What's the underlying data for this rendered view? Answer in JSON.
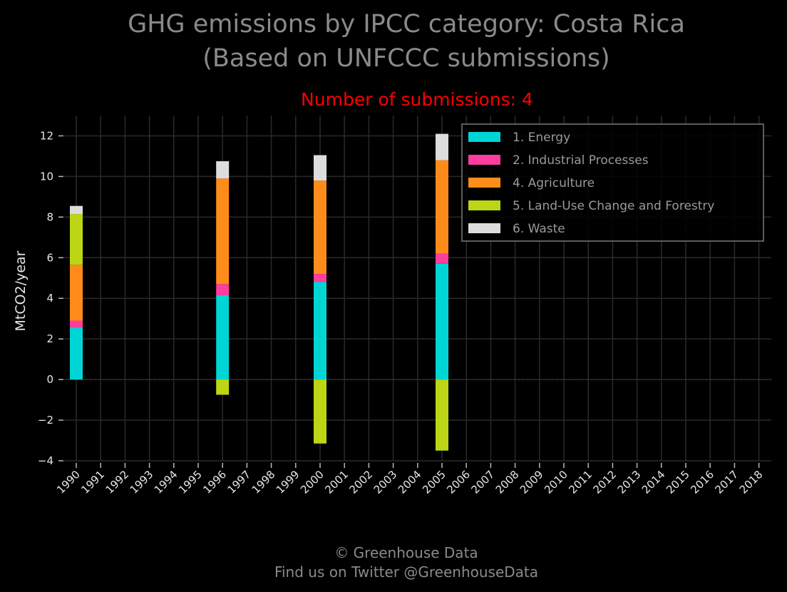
{
  "page": {
    "title_line1": "GHG emissions by IPCC category: Costa Rica",
    "title_line2": "(Based on UNFCCC submissions)",
    "footer_line1": "© Greenhouse Data",
    "footer_line2": "Find us on Twitter @GreenhouseData"
  },
  "chart_data": {
    "type": "bar",
    "stacked": true,
    "title": "GHG emissions by IPCC category: Costa Rica (Based on UNFCCC submissions)",
    "subtitle": "Number of submissions: 4",
    "xlabel": "",
    "ylabel": "MtCO2/year",
    "ylim": [
      -4,
      13
    ],
    "yticks": [
      -4,
      -2,
      0,
      2,
      4,
      6,
      8,
      10,
      12
    ],
    "ytick_labels": [
      "−4",
      "−2",
      "0",
      "2",
      "4",
      "6",
      "8",
      "10",
      "12"
    ],
    "grid": true,
    "legend_position": "top-right",
    "categories": [
      "1990",
      "1991",
      "1992",
      "1993",
      "1994",
      "1995",
      "1996",
      "1997",
      "1998",
      "1999",
      "2000",
      "2001",
      "2002",
      "2003",
      "2004",
      "2005",
      "2006",
      "2007",
      "2008",
      "2009",
      "2010",
      "2011",
      "2012",
      "2013",
      "2014",
      "2015",
      "2016",
      "2017",
      "2018"
    ],
    "series": [
      {
        "name": "1. Energy",
        "color": "#00d5d5",
        "values": [
          2.55,
          null,
          null,
          null,
          null,
          null,
          4.15,
          null,
          null,
          null,
          4.8,
          null,
          null,
          null,
          null,
          5.7,
          null,
          null,
          null,
          null,
          null,
          null,
          null,
          null,
          null,
          null,
          null,
          null,
          null
        ]
      },
      {
        "name": "2. Industrial Processes",
        "color": "#ff3d9e",
        "values": [
          0.35,
          null,
          null,
          null,
          null,
          null,
          0.55,
          null,
          null,
          null,
          0.4,
          null,
          null,
          null,
          null,
          0.5,
          null,
          null,
          null,
          null,
          null,
          null,
          null,
          null,
          null,
          null,
          null,
          null,
          null
        ]
      },
      {
        "name": "4. Agriculture",
        "color": "#ff8c1a",
        "values": [
          2.75,
          null,
          null,
          null,
          null,
          null,
          5.2,
          null,
          null,
          null,
          4.6,
          null,
          null,
          null,
          null,
          4.6,
          null,
          null,
          null,
          null,
          null,
          null,
          null,
          null,
          null,
          null,
          null,
          null,
          null
        ]
      },
      {
        "name": "5. Land-Use Change and Forestry",
        "color": "#bcd616",
        "values": [
          2.5,
          null,
          null,
          null,
          null,
          null,
          -0.75,
          null,
          null,
          null,
          -3.15,
          null,
          null,
          null,
          null,
          -3.5,
          null,
          null,
          null,
          null,
          null,
          null,
          null,
          null,
          null,
          null,
          null,
          null,
          null
        ]
      },
      {
        "name": "6. Waste",
        "color": "#dddddd",
        "values": [
          0.4,
          null,
          null,
          null,
          null,
          null,
          0.85,
          null,
          null,
          null,
          1.25,
          null,
          null,
          null,
          null,
          1.3,
          null,
          null,
          null,
          null,
          null,
          null,
          null,
          null,
          null,
          null,
          null,
          null,
          null
        ]
      }
    ]
  }
}
